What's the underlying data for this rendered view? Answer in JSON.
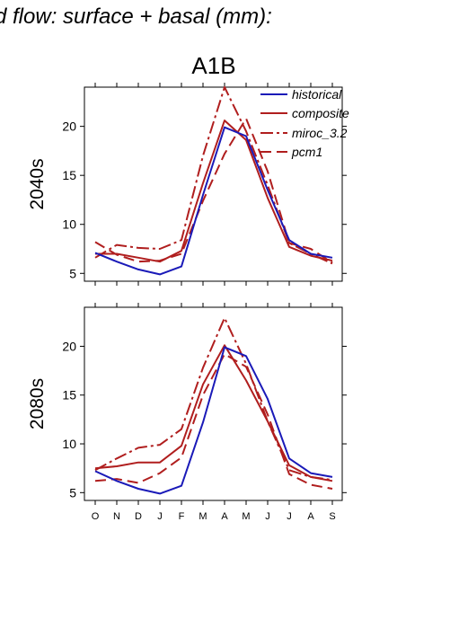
{
  "title": "d flow: surface + basal (mm):",
  "scenario": "A1B",
  "colors": {
    "historical": "#1a1ab8",
    "composite": "#b01e1e",
    "miroc_3.2": "#b01e1e",
    "pcm1": "#b01e1e"
  },
  "chart_data": [
    {
      "type": "line",
      "panel_label": "2040s",
      "categories": [
        "O",
        "N",
        "D",
        "J",
        "F",
        "M",
        "A",
        "M",
        "J",
        "J",
        "A",
        "S"
      ],
      "yticks": [
        5,
        10,
        15,
        20
      ],
      "ylim": [
        4.2,
        24
      ],
      "legend": "top-right",
      "legend_entries": [
        "historical",
        "composite",
        "miroc_3.2",
        "pcm1"
      ],
      "series": [
        {
          "name": "historical",
          "values": [
            7.1,
            6.2,
            5.4,
            4.9,
            5.7,
            13.0,
            19.9,
            19.0,
            13.5,
            8.4,
            7.0,
            6.6
          ]
        },
        {
          "name": "composite",
          "values": [
            7.0,
            7.0,
            6.6,
            6.2,
            7.3,
            14.2,
            20.6,
            18.6,
            12.7,
            7.7,
            6.8,
            6.3
          ]
        },
        {
          "name": "miroc_3.2",
          "values": [
            6.6,
            7.9,
            7.6,
            7.5,
            8.4,
            17.0,
            24.0,
            19.5,
            14.0,
            8.1,
            7.0,
            6.0
          ]
        },
        {
          "name": "pcm1",
          "values": [
            8.2,
            6.9,
            6.2,
            6.3,
            7.0,
            12.4,
            17.2,
            20.8,
            15.4,
            8.1,
            7.5,
            6.1
          ]
        }
      ]
    },
    {
      "type": "line",
      "panel_label": "2080s",
      "categories": [
        "O",
        "N",
        "D",
        "J",
        "F",
        "M",
        "A",
        "M",
        "J",
        "J",
        "A",
        "S"
      ],
      "yticks": [
        5,
        10,
        15,
        20
      ],
      "ylim": [
        4.2,
        24
      ],
      "legend": "none",
      "series": [
        {
          "name": "historical",
          "values": [
            7.2,
            6.2,
            5.4,
            4.9,
            5.7,
            12.2,
            19.9,
            19.0,
            14.6,
            8.5,
            7.0,
            6.6
          ]
        },
        {
          "name": "composite",
          "values": [
            7.5,
            7.7,
            8.1,
            8.1,
            9.8,
            16.1,
            20.1,
            16.5,
            12.3,
            7.8,
            6.6,
            6.2
          ]
        },
        {
          "name": "miroc_3.2",
          "values": [
            7.3,
            8.5,
            9.6,
            9.9,
            11.5,
            17.8,
            22.9,
            18.2,
            12.3,
            7.3,
            6.6,
            6.3
          ]
        },
        {
          "name": "pcm1",
          "values": [
            6.2,
            6.4,
            6.0,
            7.0,
            8.6,
            15.0,
            19.2,
            17.9,
            13.0,
            6.9,
            5.8,
            5.4
          ]
        }
      ]
    }
  ]
}
